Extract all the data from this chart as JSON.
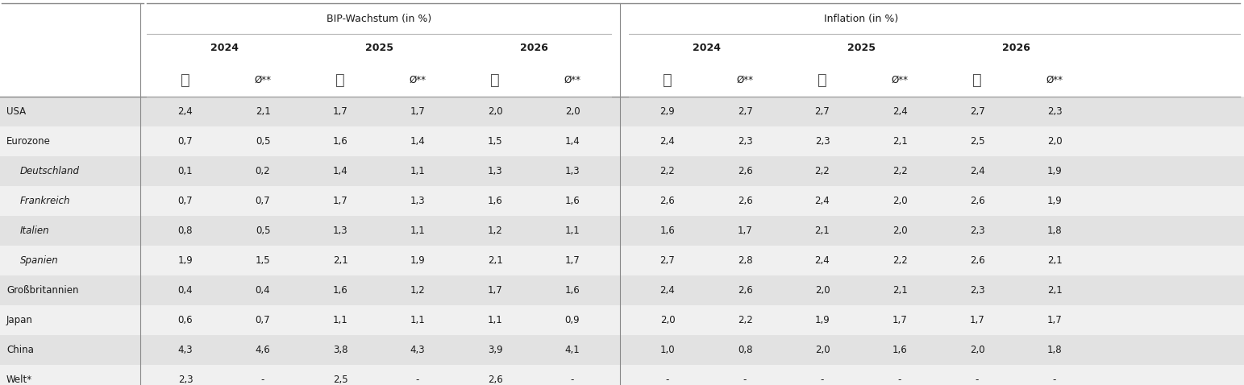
{
  "title_left": "BIP-Wachstum (in %)",
  "title_right": "Inflation (in %)",
  "years": [
    "2024",
    "2025",
    "2026"
  ],
  "rows": [
    {
      "label": "USA",
      "indent": false,
      "italic": false,
      "shaded": true,
      "bip": [
        "2,4",
        "2,1",
        "1,7",
        "1,7",
        "2,0",
        "2,0"
      ],
      "inf": [
        "2,9",
        "2,7",
        "2,7",
        "2,4",
        "2,7",
        "2,3"
      ]
    },
    {
      "label": "Eurozone",
      "indent": false,
      "italic": false,
      "shaded": false,
      "bip": [
        "0,7",
        "0,5",
        "1,6",
        "1,4",
        "1,5",
        "1,4"
      ],
      "inf": [
        "2,4",
        "2,3",
        "2,3",
        "2,1",
        "2,5",
        "2,0"
      ]
    },
    {
      "label": "Deutschland",
      "indent": true,
      "italic": true,
      "shaded": true,
      "bip": [
        "0,1",
        "0,2",
        "1,4",
        "1,1",
        "1,3",
        "1,3"
      ],
      "inf": [
        "2,2",
        "2,6",
        "2,2",
        "2,2",
        "2,4",
        "1,9"
      ]
    },
    {
      "label": "Frankreich",
      "indent": true,
      "italic": true,
      "shaded": false,
      "bip": [
        "0,7",
        "0,7",
        "1,7",
        "1,3",
        "1,6",
        "1,6"
      ],
      "inf": [
        "2,6",
        "2,6",
        "2,4",
        "2,0",
        "2,6",
        "1,9"
      ]
    },
    {
      "label": "Italien",
      "indent": true,
      "italic": true,
      "shaded": true,
      "bip": [
        "0,8",
        "0,5",
        "1,3",
        "1,1",
        "1,2",
        "1,1"
      ],
      "inf": [
        "1,6",
        "1,7",
        "2,1",
        "2,0",
        "2,3",
        "1,8"
      ]
    },
    {
      "label": "Spanien",
      "indent": true,
      "italic": true,
      "shaded": false,
      "bip": [
        "1,9",
        "1,5",
        "2,1",
        "1,9",
        "2,1",
        "1,7"
      ],
      "inf": [
        "2,7",
        "2,8",
        "2,4",
        "2,2",
        "2,6",
        "2,1"
      ]
    },
    {
      "label": "Großbritannien",
      "indent": false,
      "italic": false,
      "shaded": true,
      "bip": [
        "0,4",
        "0,4",
        "1,6",
        "1,2",
        "1,7",
        "1,6"
      ],
      "inf": [
        "2,4",
        "2,6",
        "2,0",
        "2,1",
        "2,3",
        "2,1"
      ]
    },
    {
      "label": "Japan",
      "indent": false,
      "italic": false,
      "shaded": false,
      "bip": [
        "0,6",
        "0,7",
        "1,1",
        "1,1",
        "1,1",
        "0,9"
      ],
      "inf": [
        "2,0",
        "2,2",
        "1,9",
        "1,7",
        "1,7",
        "1,7"
      ]
    },
    {
      "label": "China",
      "indent": false,
      "italic": false,
      "shaded": true,
      "bip": [
        "4,3",
        "4,6",
        "3,8",
        "4,3",
        "3,9",
        "4,1"
      ],
      "inf": [
        "1,0",
        "0,8",
        "2,0",
        "1,6",
        "2,0",
        "1,8"
      ]
    },
    {
      "label": "Welt*",
      "indent": false,
      "italic": false,
      "shaded": false,
      "bip": [
        "2,3",
        "-",
        "2,5",
        "-",
        "2,6",
        "-"
      ],
      "inf": [
        "-",
        "-",
        "-",
        "-",
        "-",
        "-"
      ]
    }
  ],
  "bg_shaded": "#e2e2e2",
  "bg_light": "#f0f0f0",
  "bg_white": "#ffffff",
  "text_color": "#1a1a1a",
  "line_color": "#888888",
  "line_color_thin": "#aaaaaa",
  "font_size_data": 8.5,
  "font_size_header": 8.5,
  "font_size_title": 9.0
}
